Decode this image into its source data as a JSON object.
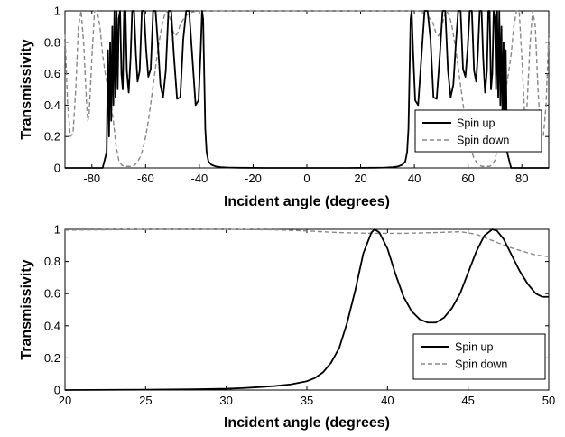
{
  "chart_data": [
    {
      "type": "line",
      "xlabel": "Incident angle (degrees)",
      "ylabel": "Transmissivity",
      "xlim": [
        -90,
        90
      ],
      "ylim": [
        0,
        1
      ],
      "xticks": [
        "-80",
        "-60",
        "-40",
        "-20",
        "0",
        "20",
        "40",
        "60",
        "80"
      ],
      "yticks": [
        "0",
        "0.2",
        "0.4",
        "0.6",
        "0.8",
        "1"
      ],
      "legend_position": "lower-right",
      "grid": false,
      "series": [
        {
          "name": "Spin up",
          "style": "solid",
          "color": "#000000",
          "x": [
            -90,
            -76,
            -74.5,
            -74,
            -73.6,
            -73.2,
            -72.8,
            -72.4,
            -72,
            -71.6,
            -71.2,
            -70.8,
            -70.4,
            -70,
            -69.5,
            -69,
            -68.5,
            -68,
            -67.5,
            -67,
            -66.3,
            -65.6,
            -65,
            -64.3,
            -63.6,
            -63,
            -62.2,
            -61.4,
            -60.6,
            -59.8,
            -59,
            -58.1,
            -57.2,
            -56.3,
            -55.4,
            -54.5,
            -53.5,
            -52.5,
            -51.5,
            -50.5,
            -49.5,
            -48.3,
            -47.1,
            -46,
            -44.9,
            -43.8,
            -42.6,
            -41.4,
            -40.3,
            -39.5,
            -39,
            -38.6,
            -38.2,
            -37.8,
            -37.3,
            -36.6,
            -35.5,
            -34,
            -32,
            -29,
            -25,
            -15,
            0,
            15,
            25,
            29,
            32,
            34,
            35.5,
            36.6,
            37.3,
            37.8,
            38.2,
            38.6,
            39,
            39.5,
            40.3,
            41.4,
            42.6,
            43.8,
            44.9,
            46,
            47.1,
            48.3,
            49.5,
            50.5,
            51.5,
            52.5,
            53.5,
            54.5,
            55.4,
            56.3,
            57.2,
            58.1,
            59,
            59.8,
            60.6,
            61.4,
            62.2,
            63,
            63.6,
            64.3,
            65,
            65.6,
            66.3,
            67,
            67.5,
            68,
            68.5,
            69,
            69.5,
            70,
            70.4,
            70.8,
            71.2,
            71.6,
            72,
            72.4,
            72.8,
            73.2,
            73.6,
            74,
            74.5,
            76,
            90
          ],
          "y": [
            0,
            0,
            0.1,
            0.75,
            0.2,
            0.8,
            0.3,
            0.9,
            0.4,
            1,
            0.45,
            1,
            0.5,
            0.95,
            1,
            0.6,
            0.5,
            1,
            1,
            0.62,
            0.48,
            0.7,
            1,
            1,
            0.72,
            0.55,
            0.62,
            1,
            1,
            0.75,
            0.58,
            0.63,
            1,
            1,
            0.78,
            0.53,
            0.45,
            0.62,
            1,
            1,
            0.72,
            0.44,
            0.45,
            0.82,
            1,
            1,
            0.7,
            0.4,
            0.43,
            0.75,
            1,
            0.95,
            0.6,
            0.25,
            0.1,
            0.04,
            0.02,
            0.01,
            0.005,
            0.002,
            0.001,
            0,
            0,
            0,
            0.001,
            0.002,
            0.005,
            0.01,
            0.02,
            0.04,
            0.1,
            0.25,
            0.6,
            0.95,
            1,
            0.75,
            0.43,
            0.4,
            0.7,
            1,
            1,
            0.82,
            0.45,
            0.44,
            0.72,
            1,
            1,
            0.62,
            0.45,
            0.53,
            0.78,
            1,
            1,
            0.63,
            0.58,
            0.75,
            1,
            1,
            0.62,
            0.55,
            0.72,
            1,
            1,
            0.7,
            0.48,
            0.62,
            1,
            1,
            0.5,
            0.6,
            1,
            0.95,
            0.5,
            1,
            0.45,
            1,
            0.4,
            0.9,
            0.3,
            0.8,
            0.2,
            0.75,
            0.1,
            0,
            0
          ]
        },
        {
          "name": "Spin down",
          "style": "dashed",
          "color": "#888888",
          "x": [
            -90,
            -89,
            -88,
            -87,
            -86,
            -85,
            -84,
            -83,
            -82,
            -81.5,
            -81,
            -80,
            -79,
            -78,
            -77,
            -76,
            -75,
            -74,
            -73,
            -72,
            -71,
            -70,
            -69,
            -68,
            -67,
            -66,
            -65,
            -64,
            -63,
            -62,
            -61,
            -60,
            -59,
            -58,
            -57,
            -56,
            -55,
            -54,
            -53,
            -52,
            -51,
            -50,
            -49,
            -48,
            -47,
            -45,
            -43,
            -41,
            -39,
            -36,
            -30,
            -20,
            0,
            20,
            30,
            36,
            39,
            41,
            43,
            45,
            47,
            48,
            49,
            50,
            51,
            52,
            53,
            54,
            55,
            56,
            57,
            58,
            59,
            60,
            61,
            62,
            63,
            64,
            65,
            66,
            67,
            68,
            69,
            70,
            71,
            72,
            73,
            74,
            75,
            76,
            77,
            78,
            79,
            80,
            81,
            81.5,
            82,
            83,
            84,
            85,
            86,
            87,
            88,
            89,
            90
          ],
          "y": [
            0.85,
            0.4,
            0.2,
            0.22,
            0.5,
            0.9,
            1,
            0.78,
            0.42,
            0.3,
            0.35,
            0.7,
            1,
            1,
            0.9,
            0.72,
            0.6,
            0.5,
            0.42,
            0.3,
            0.14,
            0.05,
            0.02,
            0.01,
            0.01,
            0.01,
            0.01,
            0.02,
            0.04,
            0.07,
            0.12,
            0.2,
            0.3,
            0.42,
            0.55,
            0.68,
            0.8,
            0.9,
            0.97,
            1,
            0.96,
            0.88,
            0.84,
            0.86,
            0.92,
            0.97,
            0.99,
            1,
            1,
            1,
            1,
            1,
            1,
            1,
            1,
            1,
            1,
            1,
            0.99,
            0.97,
            0.92,
            0.86,
            0.84,
            0.88,
            0.96,
            1,
            0.97,
            0.9,
            0.8,
            0.68,
            0.55,
            0.42,
            0.3,
            0.2,
            0.12,
            0.07,
            0.04,
            0.02,
            0.01,
            0.01,
            0.01,
            0.01,
            0.02,
            0.05,
            0.14,
            0.3,
            0.42,
            0.5,
            0.6,
            0.72,
            0.9,
            1,
            1,
            0.7,
            0.35,
            0.3,
            0.42,
            0.78,
            1,
            0.9,
            0.5,
            0.22,
            0.2,
            0.4,
            0.85
          ]
        }
      ]
    },
    {
      "type": "line",
      "xlabel": "Incident angle (degrees)",
      "ylabel": "Transmissivity",
      "xlim": [
        20,
        50
      ],
      "ylim": [
        0,
        1
      ],
      "xticks": [
        "20",
        "25",
        "30",
        "35",
        "40",
        "45",
        "50"
      ],
      "yticks": [
        "0",
        "0.2",
        "0.4",
        "0.6",
        "0.8",
        "1"
      ],
      "legend_position": "lower-right",
      "grid": false,
      "series": [
        {
          "name": "Spin up",
          "style": "solid",
          "color": "#000000",
          "x": [
            20,
            25,
            28,
            30,
            31,
            32,
            33,
            34,
            35,
            35.5,
            36,
            36.5,
            37,
            37.5,
            38,
            38.5,
            39,
            39.2,
            39.5,
            40,
            40.5,
            41,
            41.5,
            42,
            42.5,
            43,
            43.5,
            44,
            44.5,
            45,
            45.5,
            46,
            46.5,
            46.8,
            47.2,
            47.7,
            48.2,
            48.7,
            49.2,
            49.6,
            50
          ],
          "y": [
            0,
            0.002,
            0.005,
            0.008,
            0.012,
            0.018,
            0.025,
            0.035,
            0.055,
            0.075,
            0.11,
            0.17,
            0.26,
            0.42,
            0.62,
            0.85,
            0.98,
            1,
            0.98,
            0.88,
            0.72,
            0.58,
            0.49,
            0.44,
            0.42,
            0.42,
            0.45,
            0.51,
            0.6,
            0.73,
            0.86,
            0.96,
            1,
            0.99,
            0.94,
            0.84,
            0.74,
            0.66,
            0.6,
            0.58,
            0.58
          ]
        },
        {
          "name": "Spin down",
          "style": "dashed",
          "color": "#888888",
          "x": [
            20,
            25,
            30,
            33,
            35,
            37,
            39,
            41,
            43,
            44.5,
            45.5,
            46.5,
            47.5,
            48.5,
            49.2,
            50
          ],
          "y": [
            0.995,
            1,
            1,
            0.997,
            0.99,
            0.98,
            0.975,
            0.975,
            0.98,
            0.985,
            0.97,
            0.93,
            0.89,
            0.86,
            0.84,
            0.83
          ]
        }
      ]
    }
  ]
}
